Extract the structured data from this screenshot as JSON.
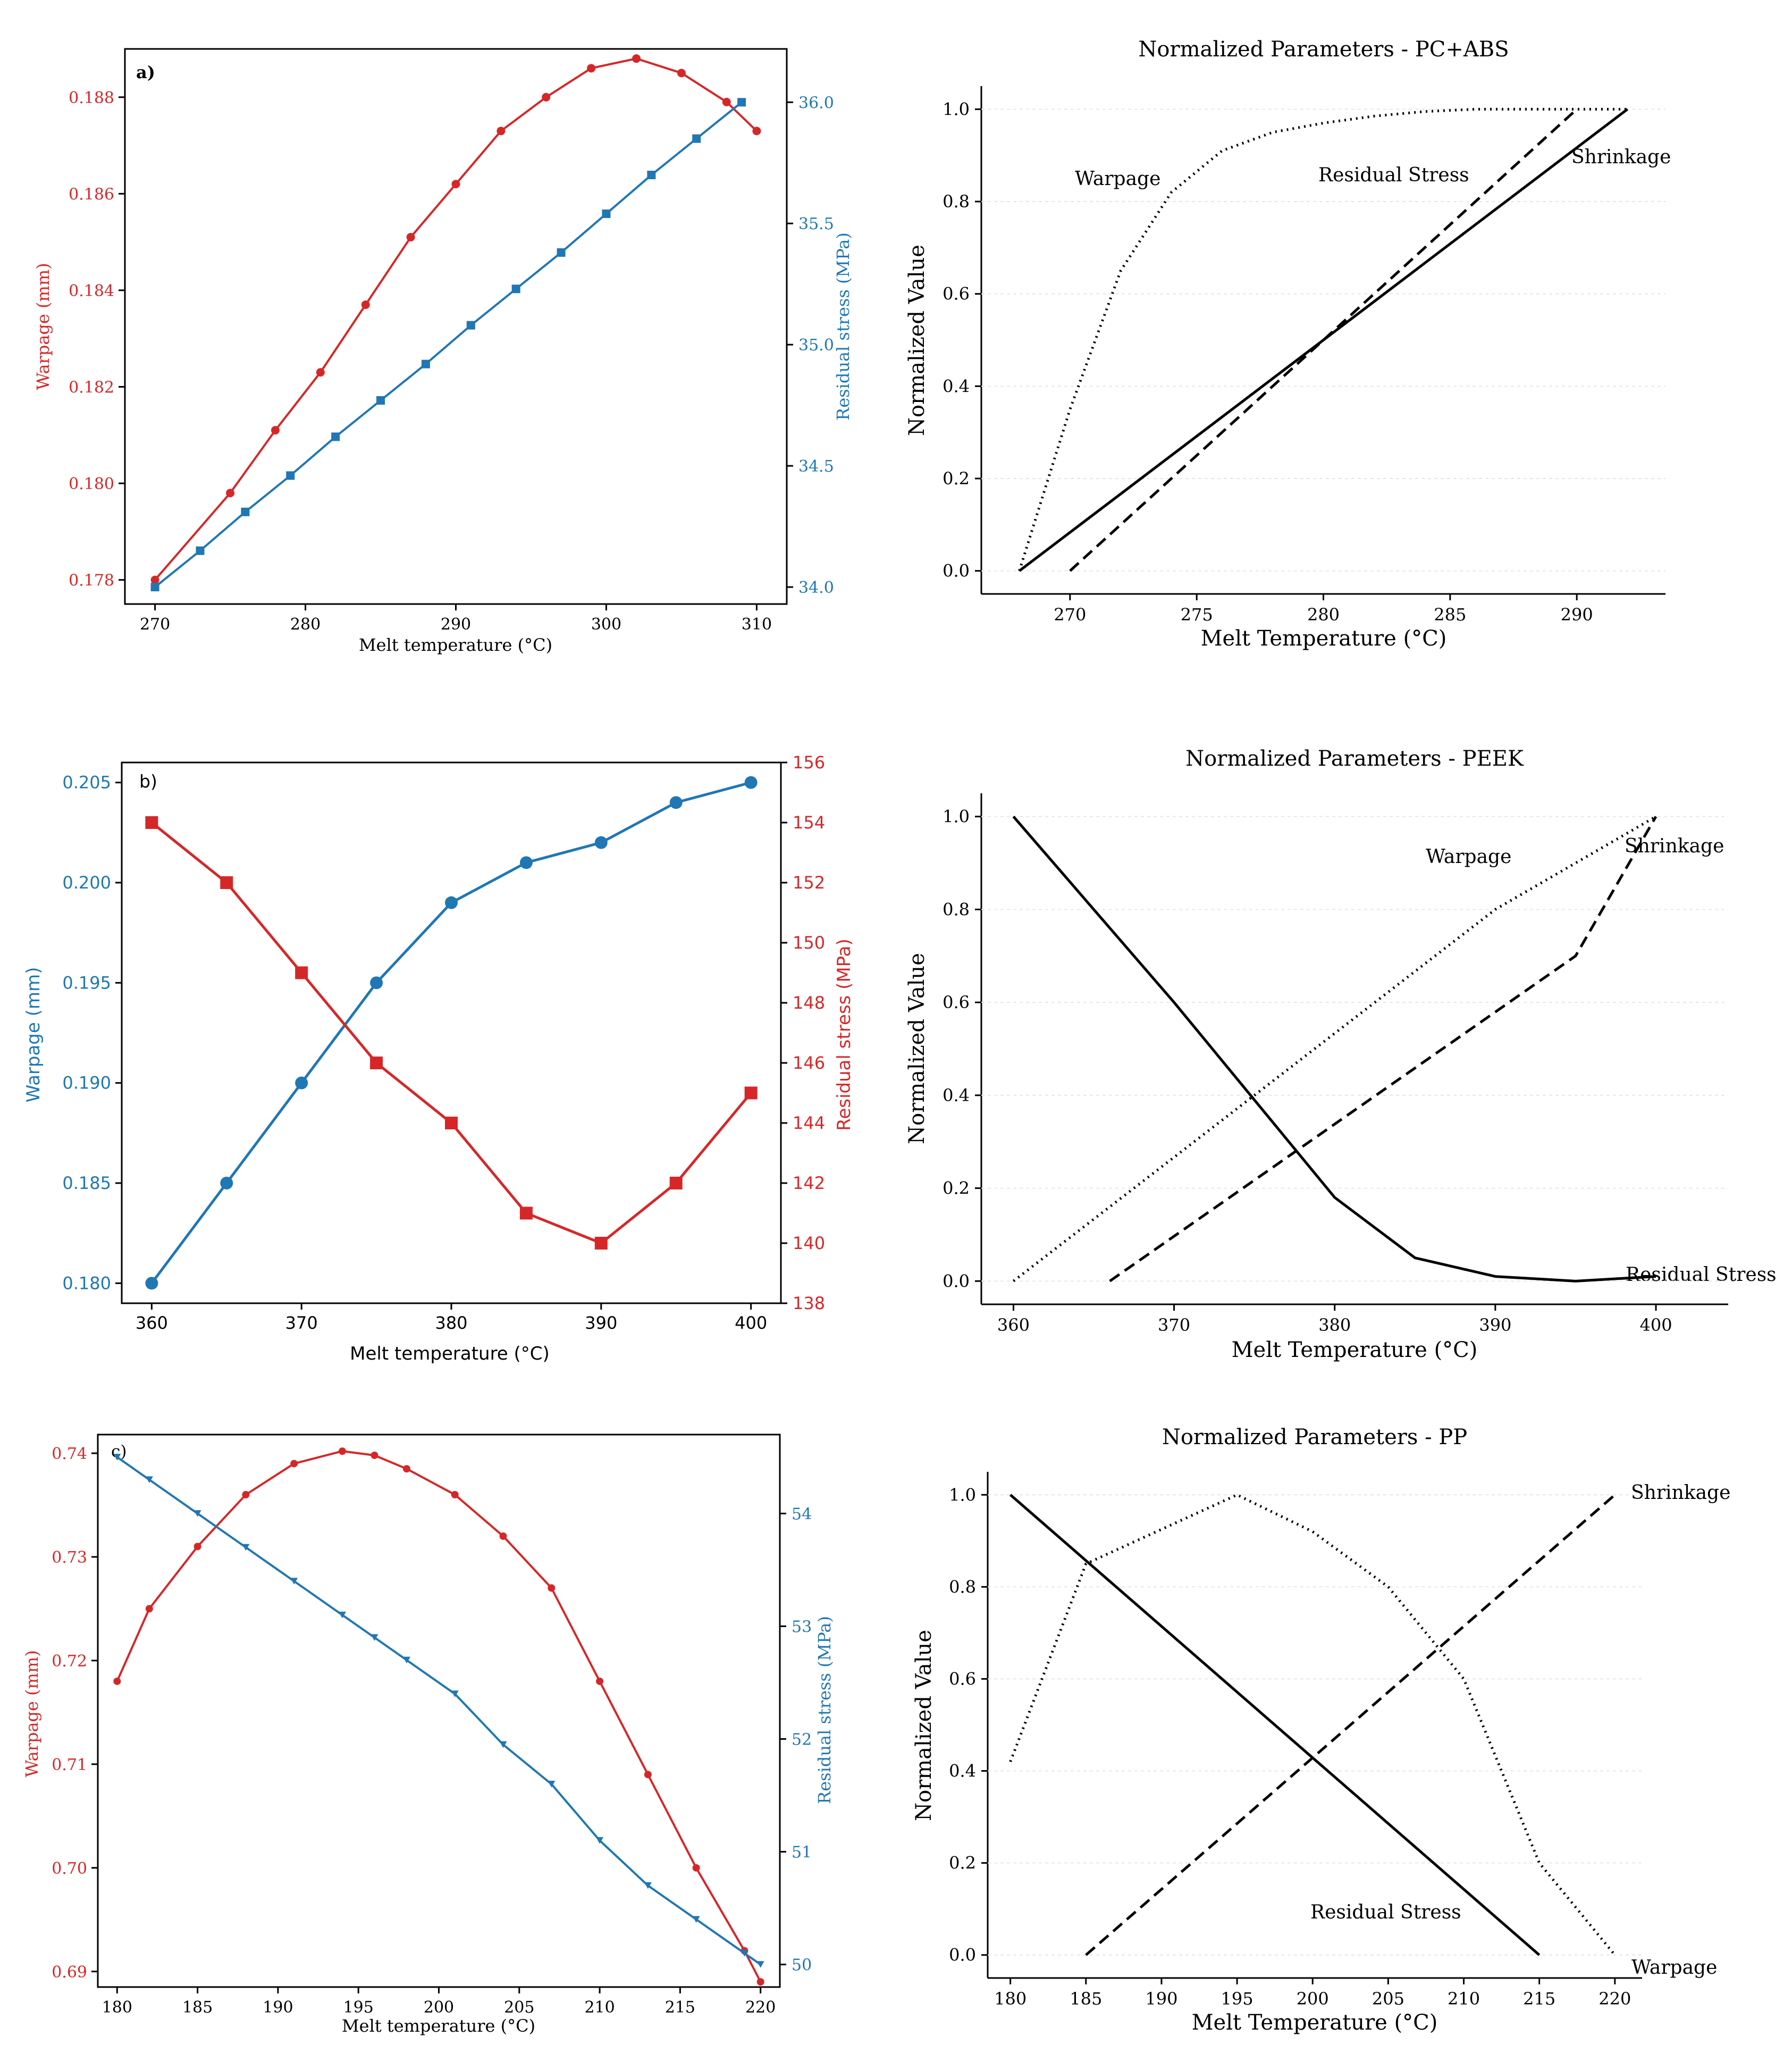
{
  "chart_data": [
    {
      "id": "a",
      "type": "line",
      "panel_label": "a)",
      "xlabel": "Melt temperature (°C)",
      "ylabel_left": "Warpage (mm)",
      "ylabel_right": "Residual stress (MPa)",
      "xlim": [
        268,
        312
      ],
      "xticks": [
        270,
        280,
        290,
        300,
        310
      ],
      "ylim_left": [
        0.1775,
        0.189
      ],
      "yticks_left": [
        "0.178",
        "0.180",
        "0.182",
        "0.184",
        "0.186",
        "0.188"
      ],
      "ylim_right": [
        33.93,
        36.22
      ],
      "yticks_right": [
        "34.0",
        "34.5",
        "35.0",
        "35.5",
        "36.0"
      ],
      "colors": {
        "left": "#d62728",
        "right": "#1f77b4"
      },
      "series": [
        {
          "name": "Warpage (mm)",
          "axis": "left",
          "marker": "circle",
          "x": [
            270,
            275,
            278,
            281,
            284,
            287,
            290,
            293,
            296,
            299,
            302,
            305,
            308,
            310
          ],
          "values": [
            0.178,
            0.1798,
            0.1811,
            0.1823,
            0.1837,
            0.1851,
            0.1862,
            0.1873,
            0.188,
            0.1886,
            0.1888,
            0.1885,
            0.1879,
            0.1873
          ]
        },
        {
          "name": "Residual stress (MPa)",
          "axis": "right",
          "marker": "square",
          "x": [
            270,
            273,
            276,
            279,
            282,
            285,
            288,
            291,
            294,
            297,
            300,
            303,
            306,
            309
          ],
          "values": [
            34.0,
            34.15,
            34.31,
            34.46,
            34.62,
            34.77,
            34.92,
            35.08,
            35.23,
            35.38,
            35.54,
            35.7,
            35.85,
            36.0
          ]
        }
      ]
    },
    {
      "id": "pcabs",
      "type": "line",
      "title": "Normalized Parameters - PC+ABS",
      "xlabel": "Melt Temperature (°C)",
      "ylabel": "Normalized Value",
      "xlim": [
        266.5,
        293.5
      ],
      "xticks": [
        270,
        275,
        280,
        285,
        290
      ],
      "ylim": [
        -0.05,
        1.05
      ],
      "yticks": [
        "0.0",
        "0.2",
        "0.4",
        "0.6",
        "0.8",
        "1.0"
      ],
      "series": [
        {
          "name": "Shrinkage",
          "style": "solid",
          "x": [
            268,
            292
          ],
          "values": [
            0.0,
            1.0
          ]
        },
        {
          "name": "Residual Stress",
          "style": "dashed",
          "x": [
            270,
            290
          ],
          "values": [
            0.0,
            1.0
          ]
        },
        {
          "name": "Warpage",
          "style": "dotted",
          "x": [
            268,
            270,
            272,
            274,
            276,
            278,
            280,
            282,
            284,
            286,
            288,
            290,
            292
          ],
          "values": [
            0.0,
            0.35,
            0.65,
            0.82,
            0.91,
            0.95,
            0.97,
            0.985,
            0.995,
            1.0,
            1.0,
            1.0,
            1.0
          ]
        }
      ],
      "annotations": [
        "Warpage",
        "Residual Stress",
        "Shrinkage"
      ]
    },
    {
      "id": "b",
      "type": "line",
      "panel_label": "b)",
      "xlabel": "Melt temperature (°C)",
      "ylabel_left": "Warpage (mm)",
      "ylabel_right": "Residual stress (MPa)",
      "xlim": [
        358,
        402
      ],
      "xticks": [
        360,
        370,
        380,
        390,
        400
      ],
      "ylim_left": [
        0.179,
        0.206
      ],
      "yticks_left": [
        "0.180",
        "0.185",
        "0.190",
        "0.195",
        "0.200",
        "0.205"
      ],
      "ylim_right": [
        138,
        156
      ],
      "yticks_right": [
        "138",
        "140",
        "142",
        "144",
        "146",
        "148",
        "150",
        "152",
        "154",
        "156"
      ],
      "colors": {
        "left": "#1f77b4",
        "right": "#d62728"
      },
      "series": [
        {
          "name": "Warpage (mm)",
          "axis": "left",
          "marker": "circle",
          "x": [
            360,
            365,
            370,
            375,
            380,
            385,
            390,
            395,
            400
          ],
          "values": [
            0.18,
            0.185,
            0.19,
            0.195,
            0.199,
            0.201,
            0.202,
            0.204,
            0.205
          ]
        },
        {
          "name": "Residual stress (MPa)",
          "axis": "right",
          "marker": "square",
          "x": [
            360,
            365,
            370,
            375,
            380,
            385,
            390,
            395,
            400
          ],
          "values": [
            154,
            152,
            149,
            146,
            144,
            141,
            140,
            142,
            145
          ]
        }
      ]
    },
    {
      "id": "peek",
      "type": "line",
      "title": "Normalized Parameters - PEEK",
      "xlabel": "Melt Temperature (°C)",
      "ylabel": "Normalized Value",
      "xlim": [
        358,
        404.5
      ],
      "xticks": [
        360,
        370,
        380,
        390,
        400
      ],
      "ylim": [
        -0.05,
        1.05
      ],
      "yticks": [
        "0.0",
        "0.2",
        "0.4",
        "0.6",
        "0.8",
        "1.0"
      ],
      "series": [
        {
          "name": "Residual Stress",
          "style": "solid",
          "x": [
            360,
            370,
            380,
            385,
            390,
            395,
            400
          ],
          "values": [
            1.0,
            0.6,
            0.18,
            0.05,
            0.01,
            0.0,
            0.01
          ]
        },
        {
          "name": "Shrinkage",
          "style": "dashed",
          "x": [
            366,
            395,
            400
          ],
          "values": [
            0.0,
            0.7,
            1.0
          ]
        },
        {
          "name": "Warpage",
          "style": "dotted",
          "x": [
            360,
            390,
            400
          ],
          "values": [
            0.0,
            0.8,
            1.0
          ]
        }
      ],
      "annotations": [
        "Warpage",
        "Shrinkage",
        "Residual Stress"
      ]
    },
    {
      "id": "c",
      "type": "line",
      "panel_label": "c)",
      "xlabel": "Melt temperature (°C)",
      "ylabel_left": "Warpage (mm)",
      "ylabel_right": "Residual stress (MPa)",
      "xlim": [
        178.8,
        221.2
      ],
      "xticks": [
        180,
        185,
        190,
        195,
        200,
        205,
        210,
        215,
        220
      ],
      "ylim_left": [
        0.6885,
        0.7418
      ],
      "yticks_left": [
        "0.69",
        "0.70",
        "0.71",
        "0.72",
        "0.73",
        "0.74"
      ],
      "ylim_right": [
        49.8,
        54.7
      ],
      "yticks_right": [
        "50",
        "51",
        "52",
        "53",
        "54"
      ],
      "colors": {
        "left": "#d62728",
        "right": "#1f77b4"
      },
      "series": [
        {
          "name": "Warpage (mm)",
          "axis": "left",
          "marker": "circle",
          "x": [
            180,
            182,
            185,
            188,
            191,
            194,
            196,
            198,
            201,
            204,
            207,
            210,
            213,
            216,
            219,
            220
          ],
          "values": [
            0.718,
            0.725,
            0.731,
            0.736,
            0.739,
            0.7402,
            0.7398,
            0.7385,
            0.736,
            0.732,
            0.727,
            0.718,
            0.709,
            0.7,
            0.692,
            0.689
          ]
        },
        {
          "name": "Residual stress (MPa)",
          "axis": "right",
          "marker": "triangle",
          "x": [
            180,
            182,
            185,
            188,
            191,
            194,
            196,
            198,
            201,
            204,
            207,
            210,
            213,
            216,
            219,
            220
          ],
          "values": [
            54.5,
            54.3,
            54.0,
            53.7,
            53.4,
            53.1,
            52.9,
            52.7,
            52.4,
            51.95,
            51.6,
            51.1,
            50.7,
            50.4,
            50.1,
            50.0
          ]
        }
      ]
    },
    {
      "id": "pp",
      "type": "line",
      "title": "Normalized Parameters - PP",
      "xlabel": "Melt Temperature (°C)",
      "ylabel": "Normalized Value",
      "xlim": [
        178.5,
        221.8
      ],
      "xticks": [
        180,
        185,
        190,
        195,
        200,
        205,
        210,
        215,
        220
      ],
      "ylim": [
        -0.05,
        1.05
      ],
      "yticks": [
        "0.0",
        "0.2",
        "0.4",
        "0.6",
        "0.8",
        "1.0"
      ],
      "series": [
        {
          "name": "Residual Stress",
          "style": "solid",
          "x": [
            180,
            215
          ],
          "values": [
            1.0,
            0.0
          ]
        },
        {
          "name": "Shrinkage",
          "style": "dashed",
          "x": [
            185,
            220
          ],
          "values": [
            0.0,
            1.0
          ]
        },
        {
          "name": "Warpage",
          "style": "dotted",
          "x": [
            180,
            185,
            195,
            200,
            205,
            210,
            215,
            220
          ],
          "values": [
            0.42,
            0.85,
            1.0,
            0.92,
            0.8,
            0.6,
            0.2,
            0.0
          ]
        }
      ],
      "annotations": [
        "Shrinkage",
        "Residual Stress",
        "Warpage"
      ]
    }
  ]
}
